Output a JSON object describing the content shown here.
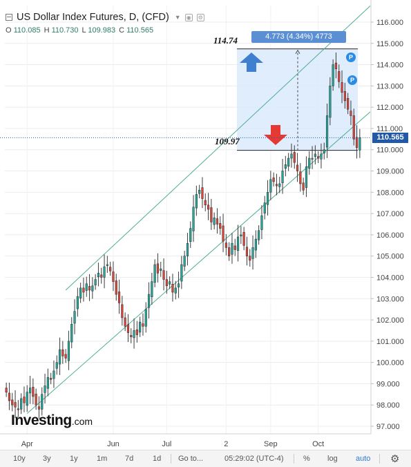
{
  "window": {
    "title": "US Dollar Index Futures, D, (CFD)",
    "caret_icon": "caret-down-icon",
    "settings_icon": "gear-icon",
    "visibility_icon": "eye-icon"
  },
  "ohlc": {
    "o_label": "O",
    "o_value": "110.085",
    "h_label": "H",
    "h_value": "110.730",
    "l_label": "L",
    "l_value": "109.983",
    "c_label": "C",
    "c_value": "110.565"
  },
  "brand": {
    "name": "Investing",
    "suffix": ".com"
  },
  "measure": {
    "label": "4.773 (4.34%) 4773",
    "upper_level": "114.74",
    "lower_level": "109.97"
  },
  "last_price": "110.565",
  "markers": [
    {
      "text": "P"
    },
    {
      "text": "P"
    }
  ],
  "bottom_bar": {
    "ranges": [
      "10y",
      "3y",
      "1y",
      "1m",
      "7d",
      "1d"
    ],
    "goto": "Go to...",
    "time": "05:29:02 (UTC-4)",
    "percent": "%",
    "log": "log",
    "auto": "auto",
    "settings_icon": "gear-icon"
  },
  "chart_data": {
    "type": "candlestick",
    "y_ticks": [
      "116.000",
      "115.000",
      "114.000",
      "113.000",
      "112.000",
      "111.000",
      "110.000",
      "109.000",
      "108.000",
      "107.000",
      "106.000",
      "105.000",
      "104.000",
      "103.000",
      "102.000",
      "101.000",
      "100.000",
      "99.000",
      "98.000",
      "97.000"
    ],
    "x_ticks": [
      {
        "label": "Apr",
        "index": 7
      },
      {
        "label": "Jun",
        "index": 36
      },
      {
        "label": "Jul",
        "index": 54
      },
      {
        "label": "2",
        "index": 74
      },
      {
        "label": "Sep",
        "index": 89
      },
      {
        "label": "Oct",
        "index": 105
      }
    ],
    "ylim": [
      96.5,
      116.6
    ],
    "grid": true,
    "colors": {
      "up": "#26a69a",
      "down": "#d8463c",
      "channel": "#4caf8c",
      "measure_fill": "#dbeafc",
      "measure_border": "#5b8fd3"
    },
    "channel": {
      "upper": [
        [
          20,
          103.4
        ],
        [
          109,
          115.0
        ]
      ],
      "lower": [
        [
          7,
          97.6
        ],
        [
          108,
          110.0
        ]
      ]
    },
    "close_path": [
      98.6,
      98.2,
      98.0,
      97.9,
      97.8,
      98.3,
      98.1,
      98.6,
      98.8,
      98.4,
      98.0,
      97.8,
      98.5,
      98.9,
      99.3,
      99.2,
      99.6,
      100.0,
      100.6,
      100.3,
      100.2,
      101.0,
      101.8,
      102.4,
      103.1,
      103.5,
      103.3,
      103.7,
      103.4,
      103.6,
      103.9,
      104.2,
      104.0,
      104.5,
      104.6,
      104.3,
      103.8,
      103.2,
      102.8,
      102.1,
      101.7,
      101.4,
      101.2,
      101.5,
      101.3,
      101.9,
      101.7,
      102.5,
      103.2,
      103.8,
      104.6,
      104.2,
      104.4,
      103.9,
      103.6,
      103.8,
      103.3,
      103.5,
      103.7,
      104.6,
      105.0,
      105.6,
      106.3,
      107.3,
      107.9,
      108.1,
      107.7,
      107.4,
      107.2,
      106.6,
      106.8,
      106.5,
      106.3,
      105.7,
      105.4,
      105.0,
      105.6,
      105.3,
      105.9,
      106.0,
      105.5,
      105.0,
      104.8,
      105.4,
      105.8,
      106.2,
      106.9,
      107.5,
      108.0,
      108.6,
      108.5,
      108.3,
      108.4,
      109.0,
      109.3,
      109.6,
      109.8,
      109.4,
      109.0,
      108.4,
      108.1,
      109.2,
      109.6,
      109.6,
      109.8,
      109.6,
      109.8,
      110.0,
      111.6,
      113.0,
      114.0,
      113.8,
      113.2,
      112.7,
      112.3,
      111.9,
      111.6,
      110.5,
      110.1,
      110.565
    ]
  }
}
